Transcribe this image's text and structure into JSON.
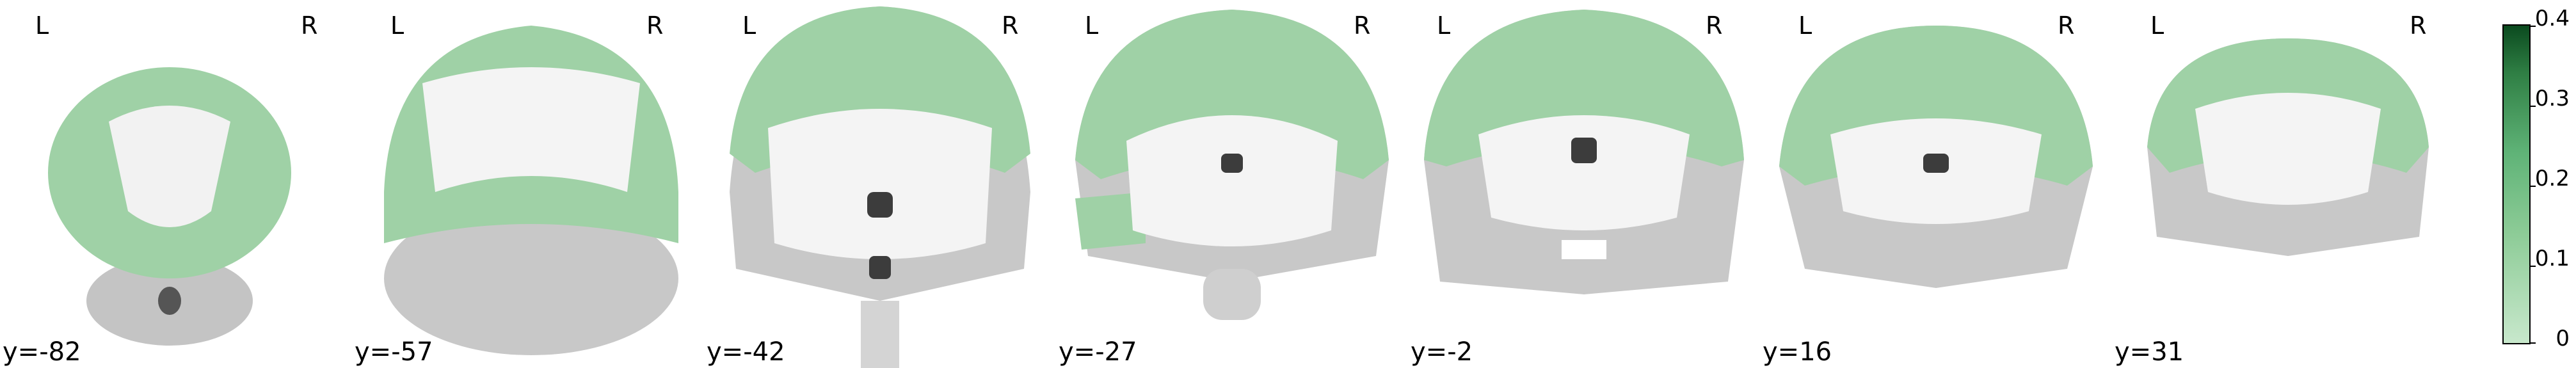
{
  "panels": [
    {
      "coord_label": "y=-82",
      "left_marker": "L",
      "right_marker": "R"
    },
    {
      "coord_label": "y=-57",
      "left_marker": "L",
      "right_marker": "R"
    },
    {
      "coord_label": "y=-42",
      "left_marker": "L",
      "right_marker": "R"
    },
    {
      "coord_label": "y=-27",
      "left_marker": "L",
      "right_marker": "R"
    },
    {
      "coord_label": "y=-2",
      "left_marker": "L",
      "right_marker": "R"
    },
    {
      "coord_label": "y=16",
      "left_marker": "L",
      "right_marker": "R"
    },
    {
      "coord_label": "y=31",
      "left_marker": "L",
      "right_marker": "R"
    }
  ],
  "colorbar": {
    "ticks": [
      "0.4",
      "0.3",
      "0.2",
      "0.1",
      "0"
    ],
    "color_high": "#0b4a1f",
    "color_mid": "#5fb377",
    "color_low": "#c8e8cc"
  },
  "colors": {
    "overlay_green": "#8ccb96",
    "brain_gray": "#c9c9c9",
    "white_matter": "#f4f4f4",
    "dark_ventricle": "#3c3c3c"
  }
}
